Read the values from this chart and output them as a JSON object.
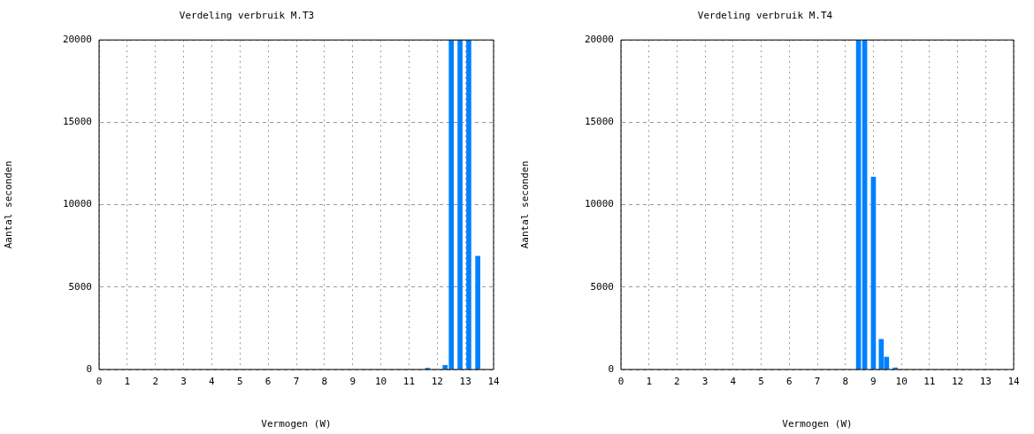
{
  "chart_data": [
    {
      "type": "bar",
      "title": "Verdeling verbruik M.T3",
      "xlabel": "Vermogen (W)",
      "ylabel": "Aantal seconden",
      "color": "#0080ff",
      "x": [
        11.66,
        12.28,
        12.5,
        12.81,
        13.12,
        13.44
      ],
      "values": [
        80,
        250,
        20000,
        20000,
        20000,
        6880
      ],
      "xlim": [
        0,
        14
      ],
      "xticks": [
        0,
        1,
        2,
        3,
        4,
        5,
        6,
        7,
        8,
        9,
        10,
        11,
        12,
        13,
        14
      ],
      "ylim": [
        0,
        20000
      ],
      "yticks": [
        0,
        5000,
        10000,
        15000,
        20000
      ],
      "grid": true
    },
    {
      "type": "bar",
      "title": "Verdeling verbruik M.T4",
      "xlabel": "Vermogen (W)",
      "ylabel": "Aantal seconden",
      "color": "#0080ff",
      "x": [
        8.47,
        8.69,
        9.0,
        9.28,
        9.47,
        9.78
      ],
      "values": [
        20000,
        20000,
        11680,
        1830,
        750,
        100
      ],
      "xlim": [
        0,
        14
      ],
      "xticks": [
        0,
        1,
        2,
        3,
        4,
        5,
        6,
        7,
        8,
        9,
        10,
        11,
        12,
        13,
        14
      ],
      "ylim": [
        0,
        20000
      ],
      "yticks": [
        0,
        5000,
        10000,
        15000,
        20000
      ],
      "grid": true
    }
  ]
}
